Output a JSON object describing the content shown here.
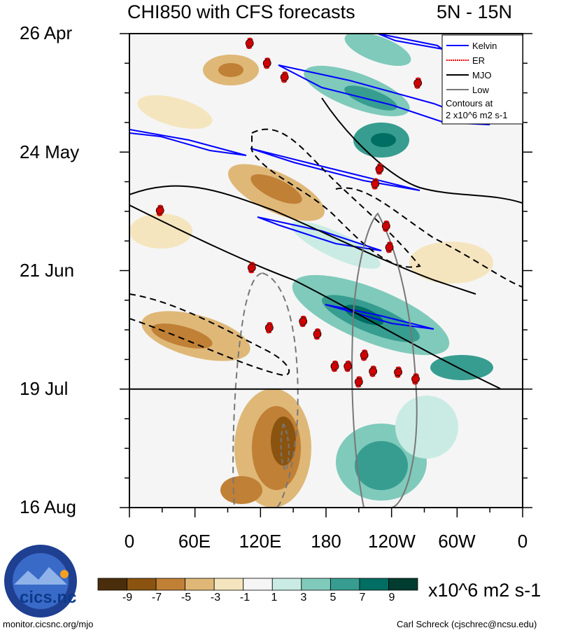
{
  "header": {
    "title": "CHI850 with CFS forecasts",
    "region": "5N - 15N"
  },
  "chart_data": {
    "type": "heatmap",
    "title": "CHI850 with CFS forecasts",
    "subtitle": "5N - 15N",
    "x_ticks": [
      "0",
      "60E",
      "120E",
      "180",
      "120W",
      "60W",
      "0"
    ],
    "x_tick_lon": [
      0,
      60,
      120,
      180,
      240,
      300,
      360
    ],
    "y_ticks": [
      "26 Apr",
      "24 May",
      "21 Jun",
      "19 Jul",
      "16 Aug"
    ],
    "y_tick_day": [
      0,
      28,
      56,
      84,
      112
    ],
    "forecast_start_day": 84,
    "legend": {
      "entries": [
        {
          "label": "Kelvin",
          "color": "#0000ff",
          "style": "solid"
        },
        {
          "label": "ER",
          "color": "#ff0000",
          "style": "dotted"
        },
        {
          "label": "MJO",
          "color": "#000000",
          "style": "solid"
        },
        {
          "label": "Low",
          "color": "#777777",
          "style": "solid"
        }
      ],
      "note_line1": "Contours at",
      "note_line2": "2 x10^6 m2 s-1",
      "position": "top-right"
    },
    "colorbar": {
      "ticks": [
        "-9",
        "-7",
        "-5",
        "-3",
        "-1",
        "1",
        "3",
        "5",
        "7",
        "9"
      ],
      "colors": [
        "#4a2e0c",
        "#8a5410",
        "#c08035",
        "#dfb878",
        "#f5e5be",
        "#f5f5f5",
        "#c9ebe3",
        "#7fcabb",
        "#379d90",
        "#006e63",
        "#003c30"
      ],
      "units": "x10^6 m2 s-1"
    },
    "storms": [
      {
        "lon": 110,
        "day": 2.3
      },
      {
        "lon": 126,
        "day": 7
      },
      {
        "lon": 142,
        "day": 10.3
      },
      {
        "lon": 264,
        "day": 11.7
      },
      {
        "lon": 229,
        "day": 32
      },
      {
        "lon": 225,
        "day": 35.5
      },
      {
        "lon": 28,
        "day": 41.8
      },
      {
        "lon": 235,
        "day": 45.5
      },
      {
        "lon": 238,
        "day": 50.5
      },
      {
        "lon": 112,
        "day": 55.3
      },
      {
        "lon": 159,
        "day": 68
      },
      {
        "lon": 128,
        "day": 69.5
      },
      {
        "lon": 172,
        "day": 71
      },
      {
        "lon": 215,
        "day": 76
      },
      {
        "lon": 200,
        "day": 78.6
      },
      {
        "lon": 188,
        "day": 78.6
      },
      {
        "lon": 223,
        "day": 79.8
      },
      {
        "lon": 210,
        "day": 82.3
      },
      {
        "lon": 262,
        "day": 81.6
      },
      {
        "lon": 246,
        "day": 80
      }
    ]
  },
  "branding": {
    "logo_text": "cics.nc",
    "source_url": "monitor.cicsnc.org/mjo",
    "author": "Carl Schreck (cjschrec@ncsu.edu)"
  }
}
